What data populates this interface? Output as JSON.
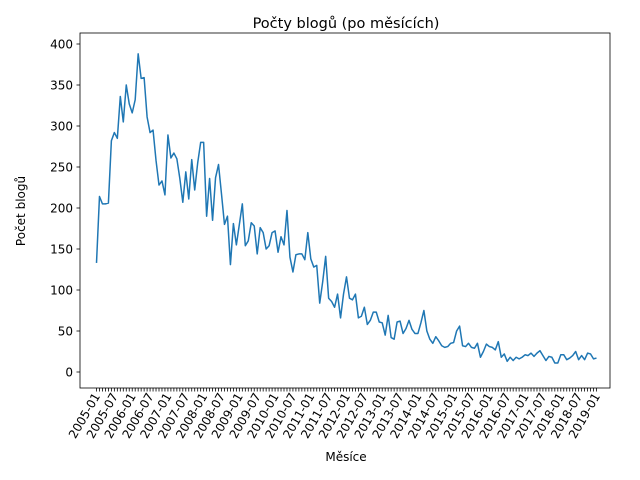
{
  "chart_data": {
    "type": "line",
    "title": "Počty blogů (po měsících)",
    "xlabel": "Měsíce",
    "ylabel": "Počet blogů",
    "ylim": [
      0,
      400
    ],
    "y_ticks": [
      0,
      50,
      100,
      150,
      200,
      250,
      300,
      350,
      400
    ],
    "x_tick_labels": [
      "2005-01",
      "2005-07",
      "2006-01",
      "2006-07",
      "2007-01",
      "2007-07",
      "2008-01",
      "2008-07",
      "2009-01",
      "2009-07",
      "2010-01",
      "2010-07",
      "2011-01",
      "2011-07",
      "2012-01",
      "2012-07",
      "2013-01",
      "2013-07",
      "2014-01",
      "2014-07",
      "2015-01",
      "2015-07",
      "2016-01",
      "2016-07",
      "2017-01",
      "2017-07",
      "2018-01",
      "2018-07",
      "2019-01"
    ],
    "x_start": "2005-01",
    "series_color": "#1f77b4",
    "grid": false,
    "values": [
      133,
      214,
      205,
      205,
      206,
      282,
      292,
      285,
      336,
      305,
      350,
      327,
      316,
      332,
      388,
      358,
      359,
      311,
      292,
      295,
      258,
      228,
      233,
      216,
      289,
      261,
      267,
      260,
      236,
      207,
      244,
      211,
      259,
      222,
      255,
      280,
      280,
      190,
      236,
      185,
      237,
      253,
      217,
      180,
      190,
      131,
      181,
      155,
      180,
      205,
      154,
      160,
      182,
      178,
      144,
      176,
      170,
      150,
      154,
      170,
      172,
      146,
      165,
      155,
      197,
      140,
      122,
      143,
      144,
      144,
      137,
      170,
      138,
      128,
      130,
      84,
      110,
      141,
      90,
      86,
      79,
      95,
      66,
      95,
      116,
      90,
      88,
      95,
      66,
      68,
      79,
      58,
      63,
      73,
      73,
      61,
      60,
      45,
      69,
      42,
      40,
      61,
      62,
      47,
      53,
      63,
      52,
      47,
      47,
      60,
      75,
      50,
      40,
      35,
      43,
      38,
      32,
      30,
      31,
      35,
      36,
      50,
      56,
      32,
      31,
      35,
      30,
      29,
      35,
      18,
      25,
      34,
      31,
      30,
      27,
      37,
      18,
      22,
      13,
      18,
      14,
      18,
      16,
      18,
      21,
      20,
      23,
      19,
      23,
      26,
      20,
      14,
      19,
      18,
      11,
      11,
      21,
      21,
      15,
      17,
      20,
      25,
      15,
      20,
      15,
      23,
      22,
      16,
      17
    ]
  }
}
